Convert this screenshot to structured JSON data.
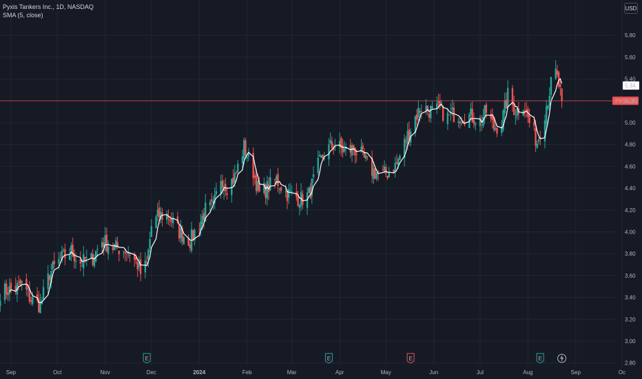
{
  "header": {
    "symbol_line": "Pyxis Tankers Inc., 1D, NASDAQ",
    "indicator_line": "SMA (5, close)"
  },
  "currency_label": "USD",
  "colors": {
    "background": "#161a25",
    "grid": "#232733",
    "up": "#26a69a",
    "down": "#ef5350",
    "sma": "#ffffff",
    "price_line": "#ef5350"
  },
  "price_tag": {
    "symbol": "PXS",
    "value": "5.20"
  },
  "sma_tag": {
    "value": "5.34"
  },
  "events": [
    {
      "icon": "earnings-icon",
      "letter": "E",
      "x_date": "2023-11-28",
      "color": "#26a69a"
    },
    {
      "icon": "earnings-icon",
      "letter": "E",
      "x_date": "2024-03-25",
      "color": "#26a69a"
    },
    {
      "icon": "earnings-icon",
      "letter": "E",
      "x_date": "2024-05-17",
      "color": "#ef5350"
    },
    {
      "icon": "earnings-icon",
      "letter": "E",
      "x_date": "2024-08-09",
      "color": "#26a69a"
    },
    {
      "icon": "lightning-icon",
      "letter": "⚡",
      "x_date": "2024-08-23",
      "color": "#b2b5be"
    }
  ],
  "chart_data": {
    "type": "candlestick",
    "title": "Pyxis Tankers Inc., 1D, NASDAQ",
    "indicator": "SMA (5, close)",
    "currency": "USD",
    "last_price": 5.2,
    "sma_last": 5.34,
    "ylim": [
      2.75,
      5.95
    ],
    "y_ticks": [
      "2.80",
      "3.00",
      "3.20",
      "3.40",
      "3.60",
      "3.80",
      "4.00",
      "4.20",
      "4.40",
      "4.60",
      "4.80",
      "5.00",
      "5.20",
      "5.40",
      "5.60",
      "5.80"
    ],
    "x_ticks": [
      {
        "label": "Sep",
        "date": "2023-09-01"
      },
      {
        "label": "Oct",
        "date": "2023-10-01"
      },
      {
        "label": "Nov",
        "date": "2023-11-01"
      },
      {
        "label": "Dec",
        "date": "2023-12-01"
      },
      {
        "label": "2024",
        "date": "2024-01-01",
        "bold": true
      },
      {
        "label": "Feb",
        "date": "2024-02-01"
      },
      {
        "label": "Mar",
        "date": "2024-03-01"
      },
      {
        "label": "Apr",
        "date": "2024-04-01"
      },
      {
        "label": "May",
        "date": "2024-05-01"
      },
      {
        "label": "Jun",
        "date": "2024-06-01"
      },
      {
        "label": "Jul",
        "date": "2024-07-01"
      },
      {
        "label": "Aug",
        "date": "2024-08-01"
      },
      {
        "label": "Sep",
        "date": "2024-09-01"
      },
      {
        "label": "Oc",
        "date": "2024-10-01"
      }
    ],
    "close_path": [
      [
        "2023-08-25",
        3.45
      ],
      [
        "2023-09-04",
        3.48
      ],
      [
        "2023-09-08",
        3.52
      ],
      [
        "2023-09-14",
        3.38
      ],
      [
        "2023-09-20",
        3.33
      ],
      [
        "2023-09-26",
        3.62
      ],
      [
        "2023-10-03",
        3.75
      ],
      [
        "2023-10-10",
        3.82
      ],
      [
        "2023-10-16",
        3.72
      ],
      [
        "2023-10-23",
        3.74
      ],
      [
        "2023-10-30",
        3.92
      ],
      [
        "2023-11-06",
        3.86
      ],
      [
        "2023-11-10",
        3.85
      ],
      [
        "2023-11-16",
        3.83
      ],
      [
        "2023-11-22",
        3.7
      ],
      [
        "2023-11-24",
        3.62
      ],
      [
        "2023-11-28",
        3.7
      ],
      [
        "2023-12-01",
        4.05
      ],
      [
        "2023-12-06",
        4.15
      ],
      [
        "2023-12-12",
        4.15
      ],
      [
        "2023-12-19",
        4.0
      ],
      [
        "2023-12-26",
        3.92
      ],
      [
        "2024-01-02",
        4.1
      ],
      [
        "2024-01-05",
        4.2
      ],
      [
        "2024-01-10",
        4.22
      ],
      [
        "2024-01-15",
        4.5
      ],
      [
        "2024-01-19",
        4.42
      ],
      [
        "2024-01-24",
        4.5
      ],
      [
        "2024-01-30",
        4.78
      ],
      [
        "2024-02-05",
        4.55
      ],
      [
        "2024-02-09",
        4.35
      ],
      [
        "2024-02-14",
        4.4
      ],
      [
        "2024-02-20",
        4.48
      ],
      [
        "2024-02-26",
        4.36
      ],
      [
        "2024-03-04",
        4.32
      ],
      [
        "2024-03-07",
        4.3
      ],
      [
        "2024-03-12",
        4.34
      ],
      [
        "2024-03-18",
        4.6
      ],
      [
        "2024-03-22",
        4.72
      ],
      [
        "2024-03-26",
        4.78
      ],
      [
        "2024-03-29",
        4.8
      ],
      [
        "2024-04-04",
        4.74
      ],
      [
        "2024-04-10",
        4.76
      ],
      [
        "2024-04-15",
        4.7
      ],
      [
        "2024-04-22",
        4.56
      ],
      [
        "2024-04-29",
        4.52
      ],
      [
        "2024-05-03",
        4.55
      ],
      [
        "2024-05-08",
        4.62
      ],
      [
        "2024-05-14",
        4.85
      ],
      [
        "2024-05-20",
        5.05
      ],
      [
        "2024-05-24",
        5.15
      ],
      [
        "2024-05-31",
        5.1
      ],
      [
        "2024-06-05",
        5.12
      ],
      [
        "2024-06-10",
        5.05
      ],
      [
        "2024-06-14",
        5.08
      ],
      [
        "2024-06-19",
        5.06
      ],
      [
        "2024-06-25",
        5.06
      ],
      [
        "2024-07-01",
        5.02
      ],
      [
        "2024-07-05",
        5.1
      ],
      [
        "2024-07-10",
        4.95
      ],
      [
        "2024-07-15",
        5.0
      ],
      [
        "2024-07-19",
        5.25
      ],
      [
        "2024-07-24",
        5.1
      ],
      [
        "2024-07-29",
        5.18
      ],
      [
        "2024-08-02",
        5.0
      ],
      [
        "2024-08-07",
        4.82
      ],
      [
        "2024-08-12",
        5.1
      ],
      [
        "2024-08-16",
        5.35
      ],
      [
        "2024-08-19",
        5.45
      ],
      [
        "2024-08-21",
        5.34
      ],
      [
        "2024-08-23",
        5.2
      ]
    ]
  }
}
